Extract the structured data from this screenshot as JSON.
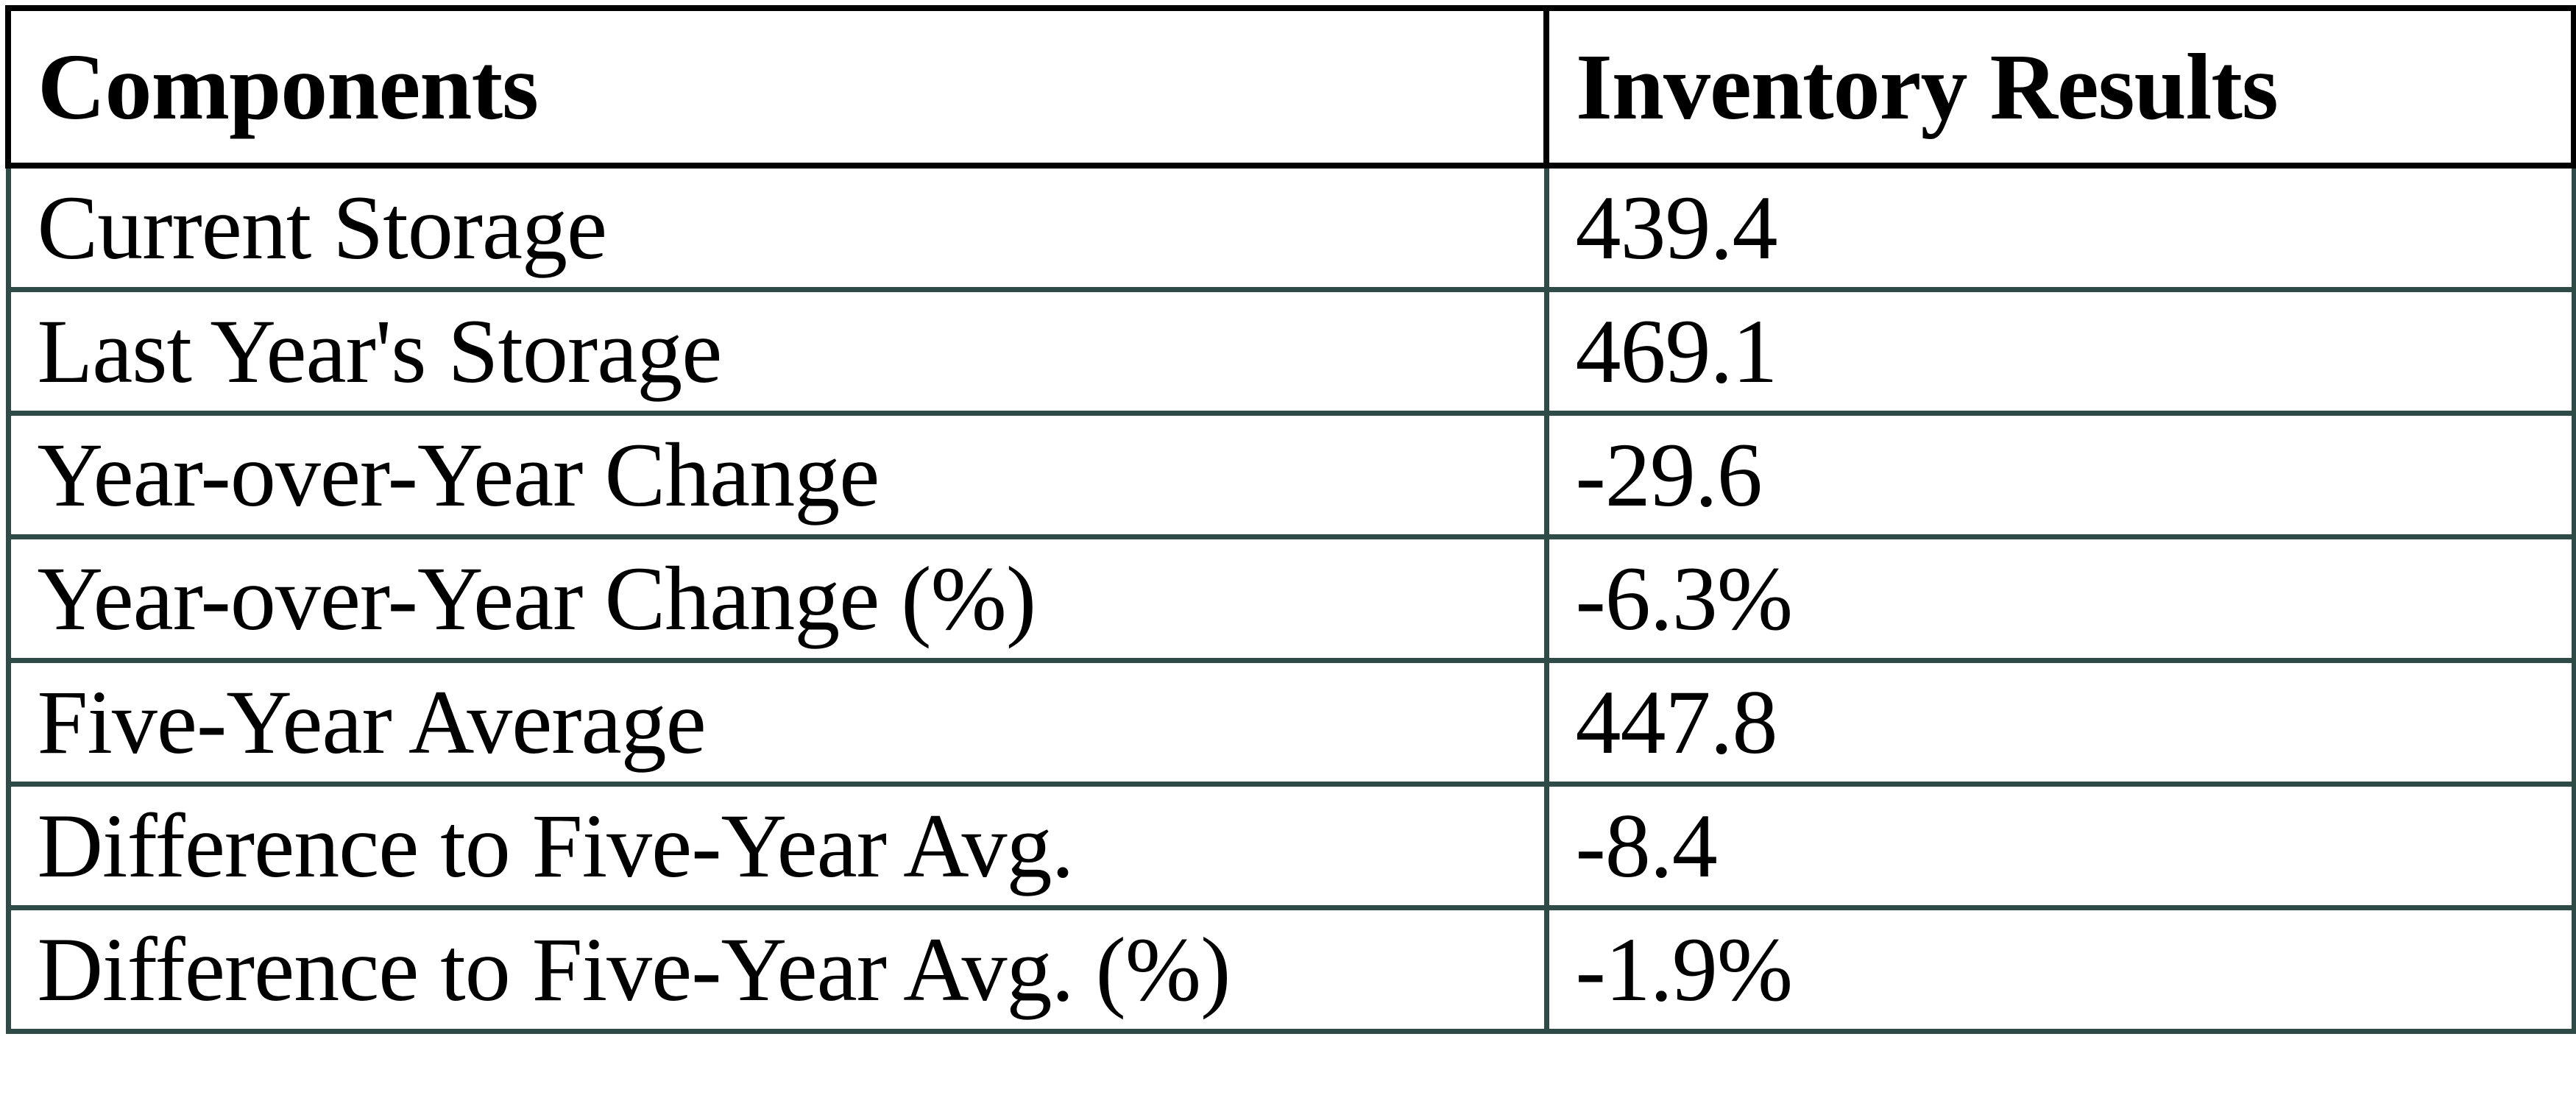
{
  "style": {
    "header_border_color": "#000000",
    "body_border_color": "#2E4B47",
    "text_color": "#000000",
    "background_color": "#ffffff"
  },
  "chart_data": {
    "type": "table",
    "columns": [
      "Components",
      "Inventory Results"
    ],
    "rows": [
      [
        "Current Storage",
        "439.4"
      ],
      [
        "Last Year's Storage",
        "469.1"
      ],
      [
        "Year-over-Year Change",
        "-29.6"
      ],
      [
        "Year-over-Year Change (%)",
        "-6.3%"
      ],
      [
        "Five-Year Average",
        "447.8"
      ],
      [
        "Difference to Five-Year Avg.",
        "-8.4"
      ],
      [
        "Difference to Five-Year Avg. (%)",
        "-1.9%"
      ]
    ]
  }
}
